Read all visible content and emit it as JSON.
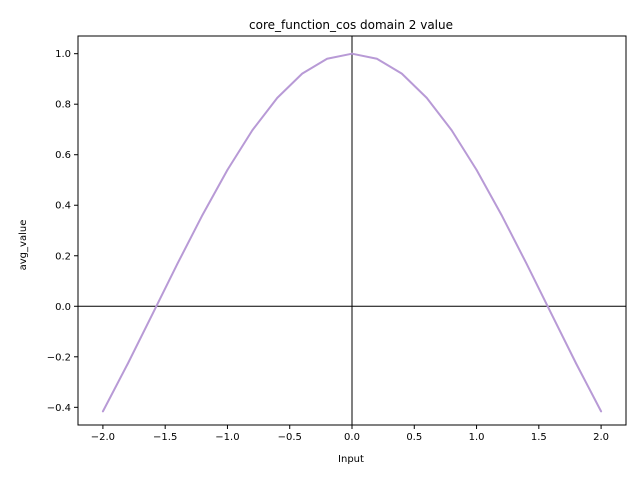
{
  "chart_data": {
    "type": "line",
    "title": "core_function_cos domain 2 value",
    "xlabel": "Input",
    "ylabel": "avg_value",
    "xlim": [
      -2.2,
      2.2
    ],
    "ylim": [
      -0.47,
      1.07
    ],
    "x_ticks": [
      -2.0,
      -1.5,
      -1.0,
      -0.5,
      0.0,
      0.5,
      1.0,
      1.5,
      2.0
    ],
    "x_tick_labels": [
      "−2.0",
      "−1.5",
      "−1.0",
      "−0.5",
      "0.0",
      "0.5",
      "1.0",
      "1.5",
      "2.0"
    ],
    "y_ticks": [
      -0.4,
      -0.2,
      0.0,
      0.2,
      0.4,
      0.6,
      0.8,
      1.0
    ],
    "y_tick_labels": [
      "−0.4",
      "−0.2",
      "0.0",
      "0.2",
      "0.4",
      "0.6",
      "0.8",
      "1.0"
    ],
    "reference_lines": {
      "x": 0,
      "y": 0,
      "color": "#000000"
    },
    "grid": false,
    "series": [
      {
        "color": "#b89ad6",
        "x": [
          -2.0,
          -1.8,
          -1.6,
          -1.4,
          -1.2,
          -1.0,
          -0.8,
          -0.6,
          -0.4,
          -0.2,
          0.0,
          0.2,
          0.4,
          0.6,
          0.8,
          1.0,
          1.2,
          1.4,
          1.6,
          1.8,
          2.0
        ],
        "values": [
          -0.416,
          -0.227,
          -0.029,
          0.17,
          0.362,
          0.54,
          0.697,
          0.825,
          0.921,
          0.98,
          1.0,
          0.98,
          0.921,
          0.825,
          0.697,
          0.54,
          0.362,
          0.17,
          -0.029,
          -0.227,
          -0.416
        ]
      }
    ]
  }
}
